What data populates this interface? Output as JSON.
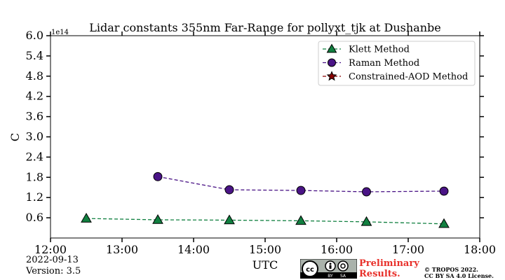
{
  "chart_data": {
    "type": "line",
    "title": "Lidar constants 355nm Far-Range for pollyxt_tjk at Dushanbe",
    "xlabel": "UTC",
    "ylabel": "C",
    "y_multiplier_label": "1e14",
    "xlim": [
      "12:00",
      "18:00"
    ],
    "ylim": [
      0,
      6.0
    ],
    "x_ticks": [
      "12:00",
      "13:00",
      "14:00",
      "15:00",
      "16:00",
      "17:00",
      "18:00"
    ],
    "y_ticks": [
      "6.0",
      "5.4",
      "4.8",
      "4.2",
      "3.6",
      "3.0",
      "2.4",
      "1.8",
      "1.2",
      "0.6"
    ],
    "grid": false,
    "legend_position": "top-right",
    "series": [
      {
        "name": "Klett Method",
        "marker": "triangle",
        "color": "#118040",
        "x": [
          "12:30",
          "13:30",
          "14:30",
          "15:30",
          "16:25",
          "17:30"
        ],
        "values": [
          0.58,
          0.54,
          0.53,
          0.51,
          0.48,
          0.42
        ]
      },
      {
        "name": "Raman Method",
        "marker": "circle",
        "color": "#4a1486",
        "x": [
          "13:30",
          "14:30",
          "15:30",
          "16:25",
          "17:30"
        ],
        "values": [
          1.82,
          1.43,
          1.41,
          1.37,
          1.39
        ]
      },
      {
        "name": "Constrained-AOD Method",
        "marker": "star",
        "color": "#8b0000",
        "x": [],
        "values": []
      }
    ]
  },
  "footer": {
    "date": "2022-09-13",
    "version": "Version: 3.5",
    "preliminary_line1": "Preliminary",
    "preliminary_line2": "Results.",
    "copyright_line1": "© TROPOS 2022.",
    "copyright_line2": "CC BY SA 4.0 License.",
    "license_badge": {
      "cc": "cc",
      "by": "BY",
      "sa": "SA"
    }
  }
}
